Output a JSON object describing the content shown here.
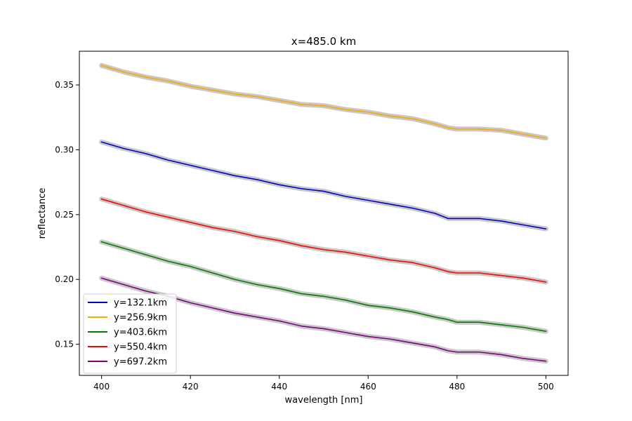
{
  "chart_data": {
    "type": "line",
    "title": "x=485.0 km",
    "xlabel": "wavelength [nm]",
    "ylabel": "reflectance",
    "xlim": [
      395,
      505
    ],
    "ylim": [
      0.126,
      0.376
    ],
    "xticks": [
      400,
      420,
      440,
      460,
      480,
      500
    ],
    "yticks": [
      0.15,
      0.2,
      0.25,
      0.3,
      0.35
    ],
    "ytick_labels": [
      "0.15",
      "0.20",
      "0.25",
      "0.30",
      "0.35"
    ],
    "grid": false,
    "legend_position": "lower-left",
    "uncertainty_band_color": "#c8c8c8",
    "x": [
      400,
      405,
      410,
      415,
      420,
      425,
      430,
      435,
      440,
      445,
      450,
      455,
      460,
      465,
      470,
      475,
      478,
      480,
      485,
      490,
      495,
      500
    ],
    "series": [
      {
        "name": "y=132.1km",
        "color": "#0000cc",
        "values": [
          0.306,
          0.301,
          0.297,
          0.292,
          0.288,
          0.284,
          0.28,
          0.277,
          0.273,
          0.27,
          0.268,
          0.264,
          0.261,
          0.258,
          0.255,
          0.251,
          0.247,
          0.247,
          0.247,
          0.245,
          0.242,
          0.239
        ]
      },
      {
        "name": "y=256.9km",
        "color": "#ffa500",
        "values": [
          0.365,
          0.36,
          0.356,
          0.353,
          0.349,
          0.346,
          0.343,
          0.341,
          0.338,
          0.335,
          0.334,
          0.331,
          0.329,
          0.326,
          0.324,
          0.32,
          0.317,
          0.316,
          0.316,
          0.315,
          0.312,
          0.309
        ]
      },
      {
        "name": "y=403.6km",
        "color": "#007d00",
        "values": [
          0.229,
          0.224,
          0.219,
          0.214,
          0.21,
          0.205,
          0.2,
          0.196,
          0.193,
          0.189,
          0.187,
          0.184,
          0.18,
          0.178,
          0.175,
          0.171,
          0.169,
          0.167,
          0.167,
          0.165,
          0.163,
          0.16
        ]
      },
      {
        "name": "y=550.4km",
        "color": "#ff0000",
        "values": [
          0.262,
          0.257,
          0.252,
          0.248,
          0.244,
          0.24,
          0.237,
          0.233,
          0.23,
          0.226,
          0.223,
          0.221,
          0.218,
          0.215,
          0.213,
          0.209,
          0.206,
          0.205,
          0.205,
          0.203,
          0.201,
          0.198
        ]
      },
      {
        "name": "y=697.2km",
        "color": "#800080",
        "values": [
          0.201,
          0.196,
          0.191,
          0.187,
          0.182,
          0.178,
          0.174,
          0.171,
          0.168,
          0.164,
          0.162,
          0.159,
          0.156,
          0.154,
          0.151,
          0.148,
          0.145,
          0.144,
          0.144,
          0.142,
          0.139,
          0.137
        ]
      }
    ]
  }
}
